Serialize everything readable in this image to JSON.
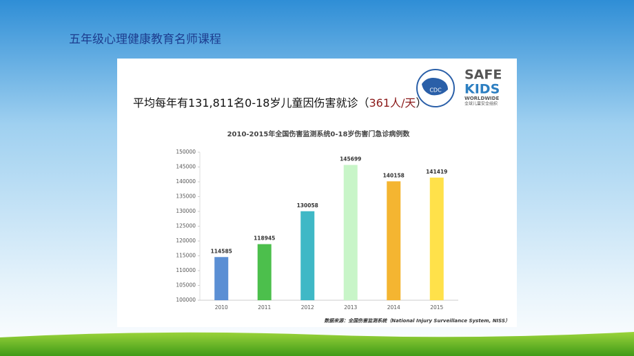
{
  "slide_title": "五年级心理健康教育名师课程",
  "headline": [
    "平均每年有131,811名0-18岁儿童因伤害就诊（",
    "361人/天",
    "）"
  ],
  "logo": {
    "cdc": "CDC",
    "safe": "SAFE",
    "kids": "KIDS",
    "worldwide": "WORLDWIDE",
    "org": "全球儿童安全组织"
  },
  "source": "数据来源：全国伤害监测系统（National Injury Surveillance System, NISS）",
  "chart_data": {
    "type": "bar",
    "title": "2010-2015年全国伤害监测系统0-18岁伤害门急诊病例数",
    "categories": [
      "2010",
      "2011",
      "2012",
      "2013",
      "2014",
      "2015"
    ],
    "values": [
      114585,
      118945,
      130058,
      145699,
      140158,
      141419
    ],
    "colors": [
      "#5b8fd4",
      "#4cbf4c",
      "#3fb8c6",
      "#c8f5c8",
      "#f4b531",
      "#ffe14a"
    ],
    "ylim": [
      100000,
      150000
    ],
    "yticks": [
      100000,
      105000,
      110000,
      115000,
      120000,
      125000,
      130000,
      135000,
      140000,
      145000,
      150000
    ],
    "grid": false
  }
}
